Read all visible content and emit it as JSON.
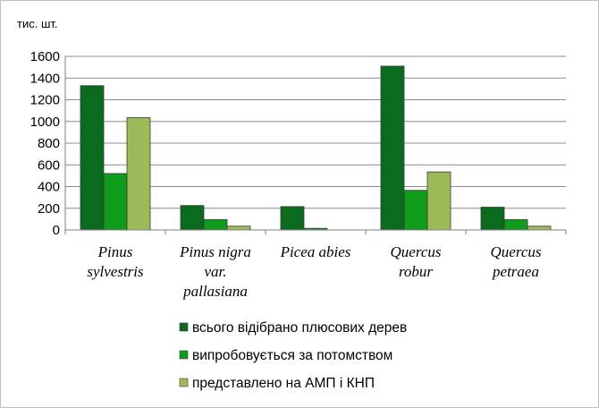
{
  "chart_data": {
    "type": "bar",
    "unit_label": "тис. шт.",
    "title": "",
    "xlabel": "",
    "ylabel": "",
    "ylim": [
      0,
      1600
    ],
    "yticks": [
      0,
      200,
      400,
      600,
      800,
      1000,
      1200,
      1400,
      1600
    ],
    "grid": true,
    "legend_position": "bottom",
    "categories": [
      [
        "Pinus",
        "sylvestris"
      ],
      [
        "Pinus nigra",
        "var.",
        "pallasiana"
      ],
      [
        "Picea abies"
      ],
      [
        "Quercus",
        "robur"
      ],
      [
        "Quercus",
        "petraea"
      ]
    ],
    "series": [
      {
        "name": "всього відібрано плюсових дерев",
        "color": "#0b6b1d",
        "values": [
          1330,
          225,
          215,
          1510,
          210
        ]
      },
      {
        "name": "випробовується за потомством",
        "color": "#0e9c1a",
        "values": [
          520,
          95,
          15,
          365,
          95
        ]
      },
      {
        "name": "представлено на АМП і КНП",
        "color": "#9bbb59",
        "values": [
          1035,
          35,
          0,
          535,
          35
        ]
      }
    ]
  }
}
